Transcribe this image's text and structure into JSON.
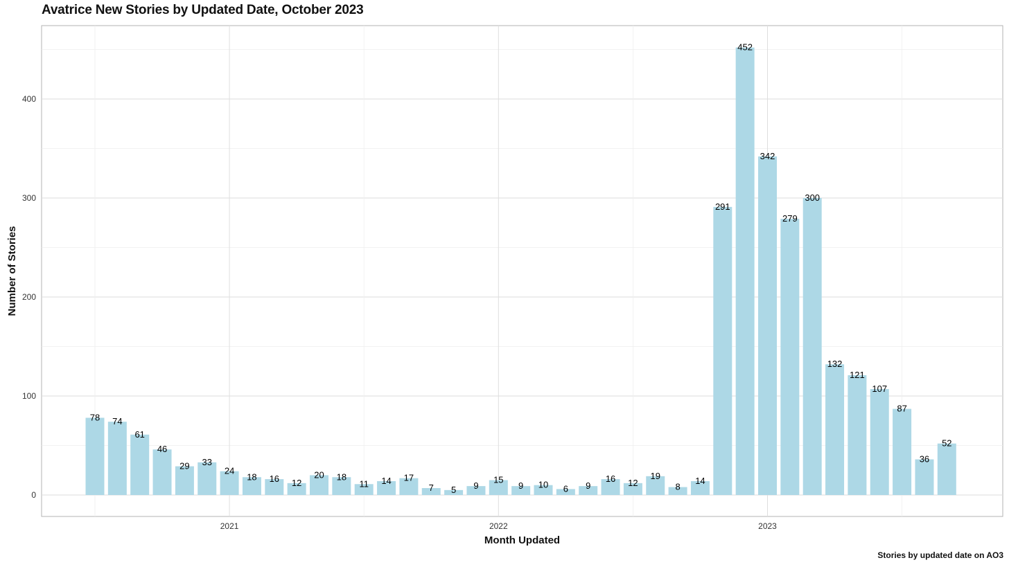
{
  "chart_data": {
    "type": "bar",
    "title": "Avatrice New Stories by Updated Date, October 2023",
    "xlabel": "Month Updated",
    "ylabel": "Number of Stories",
    "caption": "Stories by updated date on AO3",
    "categories": [
      "2020-07",
      "2020-08",
      "2020-09",
      "2020-10",
      "2020-11",
      "2020-12",
      "2021-01",
      "2021-02",
      "2021-03",
      "2021-04",
      "2021-05",
      "2021-06",
      "2021-07",
      "2021-08",
      "2021-09",
      "2021-10",
      "2021-11",
      "2021-12",
      "2022-01",
      "2022-02",
      "2022-03",
      "2022-04",
      "2022-05",
      "2022-06",
      "2022-07",
      "2022-08",
      "2022-09",
      "2022-10",
      "2022-11",
      "2022-12",
      "2023-01",
      "2023-02",
      "2023-03",
      "2023-04",
      "2023-05",
      "2023-06",
      "2023-07",
      "2023-08",
      "2023-09"
    ],
    "values": [
      78,
      74,
      61,
      46,
      29,
      33,
      24,
      18,
      16,
      12,
      20,
      18,
      11,
      14,
      17,
      7,
      5,
      9,
      15,
      9,
      10,
      6,
      9,
      16,
      12,
      19,
      8,
      14,
      291,
      452,
      342,
      279,
      300,
      132,
      121,
      107,
      87,
      36,
      52
    ],
    "x_ticks": [
      "2021",
      "2022",
      "2023"
    ],
    "y_ticks": [
      0,
      100,
      200,
      300,
      400
    ],
    "ylim": [
      -22,
      475
    ],
    "grid": true,
    "bar_color": "#add8e6",
    "show_value_labels": true
  }
}
